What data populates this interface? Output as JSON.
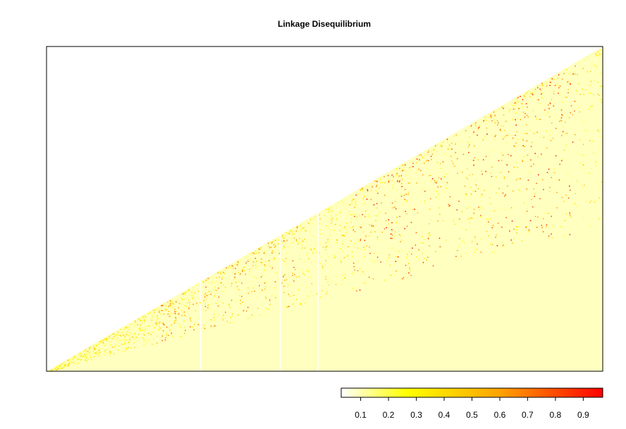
{
  "chart_data": {
    "type": "heatmap",
    "title": "Linkage Disequilibrium",
    "subtitle": "",
    "xlabel": "",
    "ylabel": "",
    "layout": "lower-triangle",
    "grid": false,
    "legend": {
      "type": "colorbar",
      "placement": "bottom-right",
      "range": [
        0.03,
        0.97
      ],
      "ticks": [
        0.1,
        0.2,
        0.3,
        0.4,
        0.5,
        0.6,
        0.7,
        0.8,
        0.9
      ],
      "tick_labels": [
        "0.1",
        "0.2",
        "0.3",
        "0.4",
        "0.5",
        "0.6",
        "0.7",
        "0.8",
        "0.9"
      ],
      "colors": [
        "#ffffff",
        "#ffff00",
        "#ffa500",
        "#ff0000"
      ]
    },
    "background_value": 0.05,
    "background_color": "#ffffc0",
    "missing_value_columns_fraction": [
      0.277,
      0.42,
      0.488
    ]
  }
}
